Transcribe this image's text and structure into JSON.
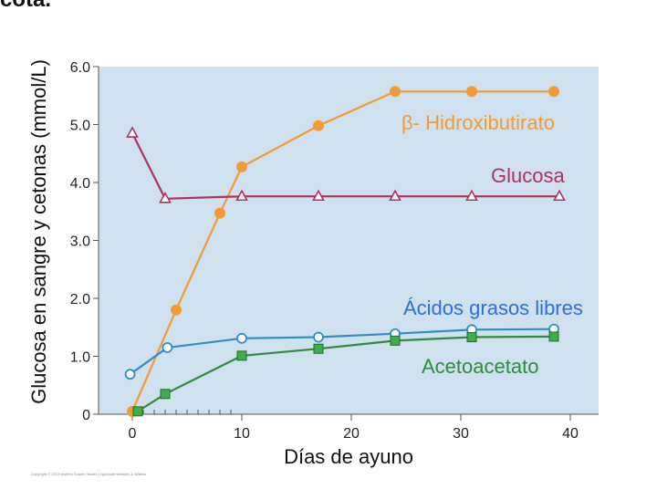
{
  "page": {
    "top_text": "cota."
  },
  "chart_data": {
    "type": "line",
    "title": "",
    "xlabel": "Días de ayuno",
    "ylabel": "Glucosa en sangre y cetonas (mmol/L)",
    "xlim": [
      -2,
      44
    ],
    "ylim": [
      0,
      6.0
    ],
    "x_ticks": [
      0,
      10,
      20,
      30,
      40
    ],
    "x_tick_labels": [
      "0",
      "10",
      "20",
      "30",
      "40"
    ],
    "y_ticks": [
      0,
      1,
      2,
      3,
      4,
      5,
      6
    ],
    "y_tick_labels": [
      "0",
      "1.0",
      "2.0",
      "3.0",
      "4.0",
      "5.0",
      "6.0"
    ],
    "minor_x_ticks": [
      1,
      2,
      3,
      4,
      5,
      6,
      7,
      8,
      9
    ],
    "grid": false,
    "plot_background": "#cfe0ee",
    "copyright": "Copyright © 2013 Wolters Kluwer Health | Lippincott Williams & Wilkins",
    "series": [
      {
        "name": "β- Hidroxibutirato",
        "color": "#f29b35",
        "marker": "filled-circle",
        "x": [
          0,
          4,
          8,
          10,
          17,
          24,
          31,
          38.5
        ],
        "y": [
          0.05,
          1.8,
          3.47,
          4.27,
          4.98,
          5.57,
          5.57,
          5.57
        ]
      },
      {
        "name": "Glucosa",
        "color": "#b03060",
        "marker": "open-triangle",
        "x": [
          0,
          3,
          10,
          17,
          24,
          31,
          39
        ],
        "y": [
          4.85,
          3.72,
          3.76,
          3.76,
          3.76,
          3.76,
          3.76
        ]
      },
      {
        "name": "Ácidos grasos libres",
        "color": "#2e8fc8",
        "marker": "open-circle",
        "x": [
          -0.2,
          3.2,
          10,
          17,
          24,
          31,
          38.5
        ],
        "y": [
          0.69,
          1.15,
          1.31,
          1.33,
          1.39,
          1.46,
          1.47
        ]
      },
      {
        "name": "Acetoacetato",
        "color": "#2e8b3f",
        "marker": "filled-square",
        "x": [
          0.5,
          3,
          10,
          17,
          24,
          31,
          38.5
        ],
        "y": [
          0.05,
          0.35,
          1.01,
          1.13,
          1.27,
          1.33,
          1.34
        ]
      }
    ]
  }
}
